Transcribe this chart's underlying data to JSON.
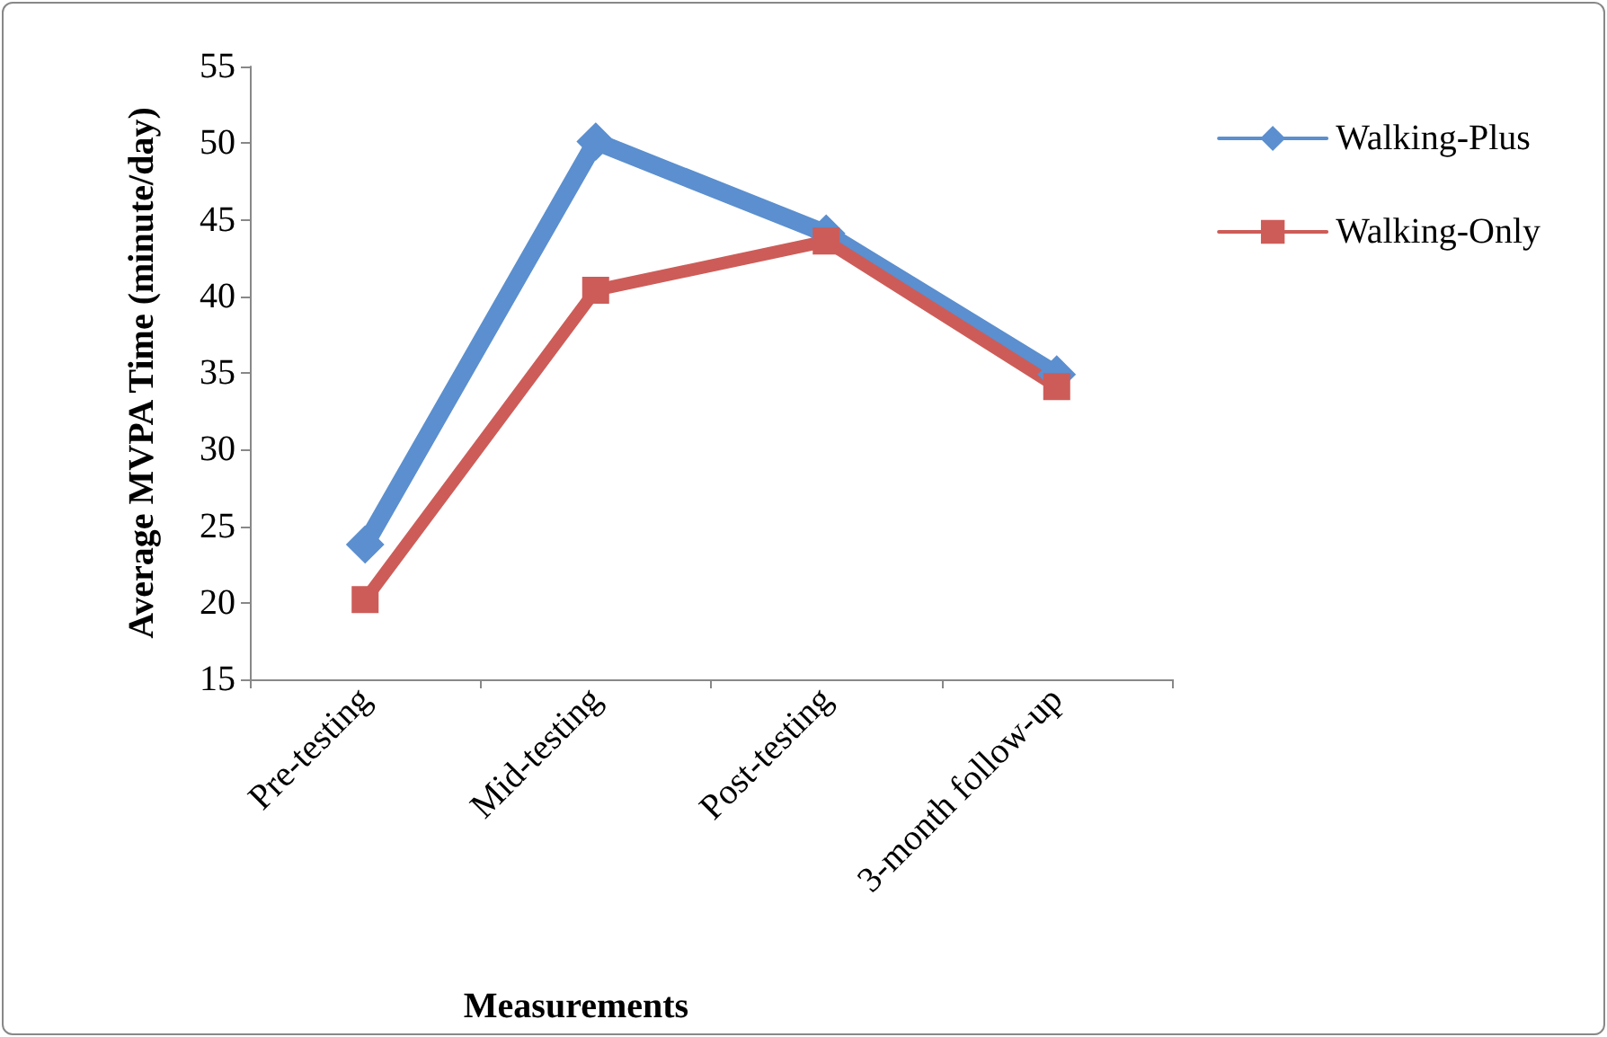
{
  "chart_data": {
    "type": "line",
    "xlabel": "Measurements",
    "ylabel": "Average MVPA Time (minute/day)",
    "categories": [
      "Pre-testing",
      "Mid-testing",
      "Post-testing",
      "3-month follow-up"
    ],
    "series": [
      {
        "name": "Walking-Plus",
        "color": "#5b8fcf",
        "marker": "diamond",
        "values": [
          23.8,
          50.1,
          44.1,
          34.9
        ]
      },
      {
        "name": "Walking-Only",
        "color": "#cd5c58",
        "marker": "square",
        "values": [
          20.2,
          40.4,
          43.6,
          34.1
        ]
      }
    ],
    "ylim": [
      15,
      55
    ],
    "yticks": [
      15,
      20,
      25,
      30,
      35,
      40,
      45,
      50,
      55
    ],
    "grid": false,
    "legend": "right",
    "line_style": "solid"
  }
}
